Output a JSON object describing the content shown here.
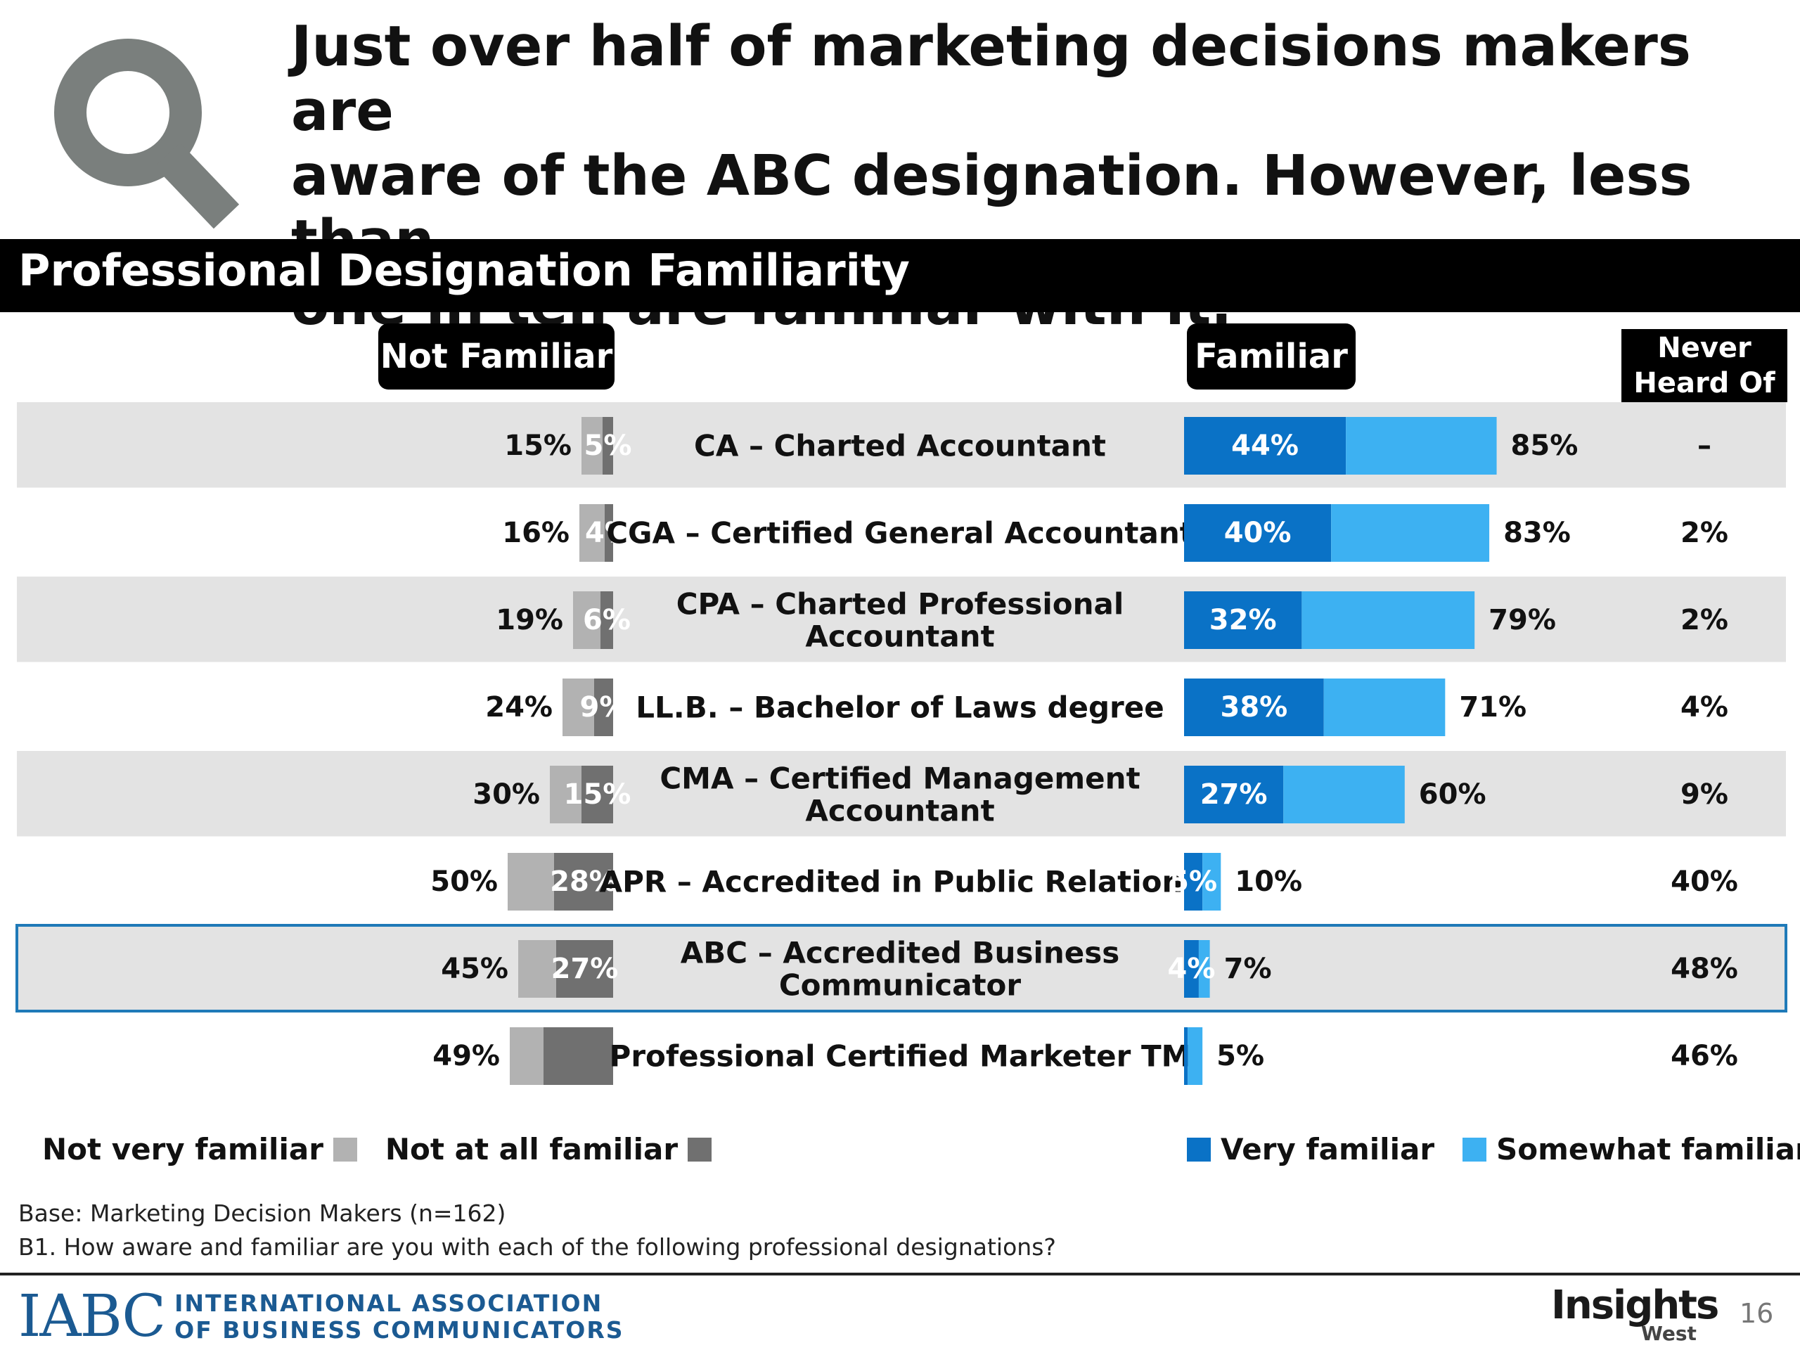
{
  "headline": {
    "line1": "Just over half of marketing decisions makers are",
    "line2": "aware of the ABC designation. However, less than",
    "line3": "one in ten are familiar with it."
  },
  "section_title": "Professional Designation Familiarity",
  "headers": {
    "not_familiar": "Not Familiar",
    "familiar": "Familiar",
    "never_heard_line1": "Never",
    "never_heard_line2": "Heard Of"
  },
  "colors": {
    "very_familiar": "#0a72c6",
    "somewhat_familiar": "#3db1f2",
    "not_very_familiar": "#b2b2b2",
    "not_at_all_familiar": "#707070",
    "row_band": "#e3e3e3",
    "highlight_border": "#1f7ab8"
  },
  "chart_data": {
    "type": "bar",
    "categories": [
      [
        "CA – Charted Accountant"
      ],
      [
        "CGA – Certified General Accountant"
      ],
      [
        "CPA – Charted Professional",
        "Accountant"
      ],
      [
        "LL.B. – Bachelor of Laws degree"
      ],
      [
        "CMA – Certified Management",
        "Accountant"
      ],
      [
        "APR – Accredited in Public Relations"
      ],
      [
        "ABC – Accredited Business",
        "Communicator"
      ],
      [
        "Professional Certified Marketer TM"
      ]
    ],
    "not_familiar_total": [
      15,
      16,
      19,
      24,
      30,
      50,
      45,
      49
    ],
    "not_familiar_total_labels": [
      "15%",
      "16%",
      "19%",
      "24%",
      "30%",
      "50%",
      "45%",
      "49%"
    ],
    "not_at_all_familiar": [
      5,
      4,
      6,
      9,
      15,
      28,
      27,
      33
    ],
    "not_at_all_familiar_labels": [
      "5%",
      "4%",
      "6%",
      "9%",
      "15%",
      "28%",
      "27%",
      ""
    ],
    "very_familiar": [
      44,
      40,
      32,
      38,
      27,
      5,
      4,
      1
    ],
    "very_familiar_labels": [
      "44%",
      "40%",
      "32%",
      "38%",
      "27%",
      "5%",
      "4%",
      ""
    ],
    "familiar_total": [
      85,
      83,
      79,
      71,
      60,
      10,
      7,
      5
    ],
    "familiar_total_labels": [
      "85%",
      "83%",
      "79%",
      "71%",
      "60%",
      "10%",
      "7%",
      "5%"
    ],
    "never_heard_of": [
      "–",
      "2%",
      "2%",
      "4%",
      "9%",
      "40%",
      "48%",
      "46%"
    ],
    "highlighted_row": 6,
    "legend": {
      "not_very_familiar": "Not very familiar",
      "not_at_all_familiar": "Not at all familiar",
      "very_familiar": "Very familiar",
      "somewhat_familiar": "Somewhat familiar"
    }
  },
  "footnotes": {
    "base": "Base: Marketing Decision Makers (n=162)",
    "question": "B1. How aware and familiar are you with each of the following professional designations?"
  },
  "footer": {
    "iabc_mark": "IABC",
    "iabc_line1": "INTERNATIONAL ASSOCIATION",
    "iabc_line2": "OF BUSINESS COMMUNICATORS",
    "insights_main": "Insights",
    "insights_sub": "West",
    "page_number": "16"
  }
}
